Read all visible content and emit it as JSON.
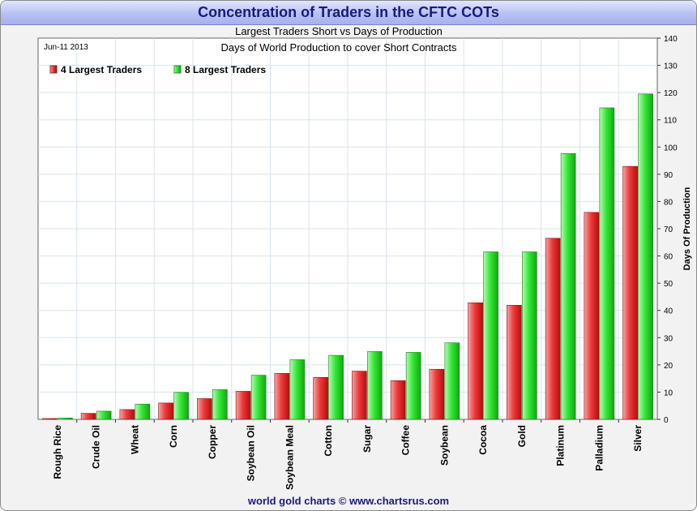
{
  "page": {
    "title": "Concentration of Traders in the CFTC COTs",
    "footer": "world gold charts © www.chartsrus.com"
  },
  "chart_data": {
    "type": "bar",
    "title": "Largest Traders Short vs Days of Production",
    "subtitle": "Days of World Production to cover Short Contracts",
    "date_label": "Jun-11  2013",
    "ylabel": "Days Of Production",
    "ylim": [
      0,
      140
    ],
    "yticks": [
      0,
      10,
      20,
      30,
      40,
      50,
      60,
      70,
      80,
      90,
      100,
      110,
      120,
      130,
      140
    ],
    "y_axis_side": "right",
    "grid": true,
    "legend": "top-left",
    "categories": [
      "Rough Rice",
      "Crude Oil",
      "Wheat",
      "Corn",
      "Copper",
      "Soybean Oil",
      "Soybean Meal",
      "Cotton",
      "Sugar",
      "Coffee",
      "Soybean",
      "Cocoa",
      "Gold",
      "Platinum",
      "Palladium",
      "Silver"
    ],
    "series": [
      {
        "name": "4 Largest Traders",
        "color": "#e82020",
        "values": [
          0.3,
          2.2,
          3.6,
          6.0,
          7.6,
          10.3,
          16.9,
          15.4,
          17.7,
          14.2,
          18.4,
          42.8,
          41.9,
          66.5,
          76.0,
          92.9
        ]
      },
      {
        "name": "8 Largest Traders",
        "color": "#22dd22",
        "values": [
          0.5,
          3.0,
          5.6,
          9.9,
          10.9,
          16.2,
          21.9,
          23.5,
          24.9,
          24.6,
          28.1,
          61.5,
          61.5,
          97.6,
          114.4,
          119.5
        ]
      }
    ]
  }
}
